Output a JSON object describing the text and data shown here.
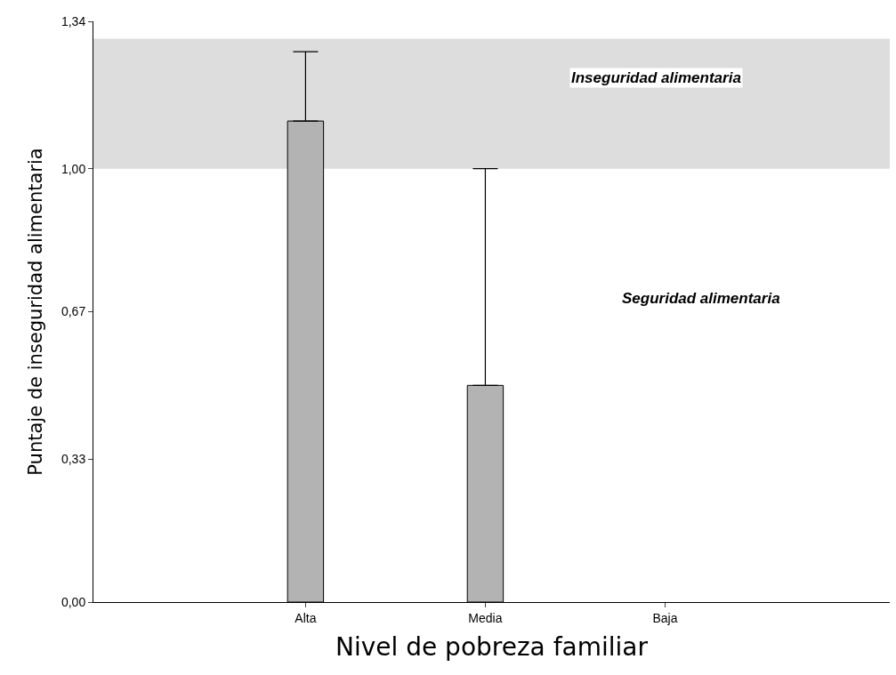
{
  "chart_data": {
    "type": "bar",
    "xlabel": "Nivel de pobreza familiar",
    "ylabel": "Puntaje de inseguridad alimentaria",
    "categories": [
      "Alta",
      "Media",
      "Baja"
    ],
    "values": [
      1.11,
      0.5,
      null
    ],
    "errors": [
      [
        1.11,
        1.27
      ],
      [
        0.5,
        1.0
      ],
      null
    ],
    "color": "#b3b3b3",
    "ylim": [
      0,
      1.34
    ],
    "yticks": [
      {
        "value": 0,
        "label": "0,00"
      },
      {
        "value": 0.33,
        "label": "0,33"
      },
      {
        "value": 0.67,
        "label": "0,67"
      },
      {
        "value": 1.0,
        "label": "1,00"
      },
      {
        "value": 1.34,
        "label": "1,34"
      }
    ],
    "bands": [
      {
        "axis": "y",
        "from": 1.0,
        "to": 1.3,
        "label": "Inseguridad alimentaria",
        "color": "#dddddd"
      }
    ],
    "annotations": [
      "Seguridad alimentaria"
    ],
    "grid": false,
    "legend": false
  }
}
